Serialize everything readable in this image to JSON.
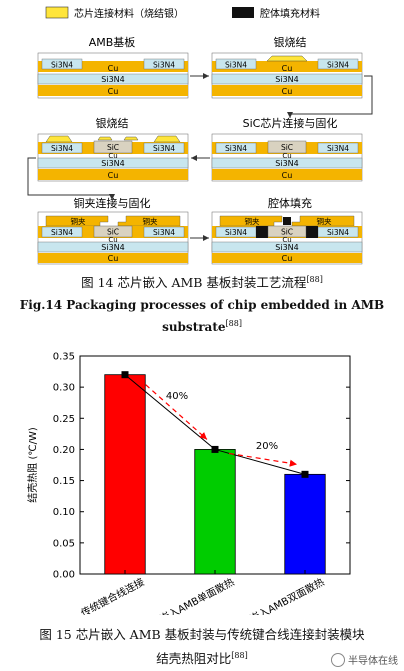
{
  "legend": {
    "filler_material": "芯片连接材料（烧结银）",
    "cavity_material": "腔体填充材料"
  },
  "process_steps": [
    {
      "title": "AMB基板",
      "labels": [
        "Si3N4",
        "Si3N4",
        "Cu",
        "Si3N4",
        "Cu"
      ]
    },
    {
      "title": "银烧结",
      "labels": [
        "Si3N4",
        "Si3N4",
        "Cu",
        "Si3N4",
        "Cu"
      ]
    },
    {
      "title": "SiC芯片连接与固化",
      "labels": [
        "Si3N4",
        "SiC",
        "Si3N4",
        "Cu",
        "Si3N4",
        "Cu"
      ]
    },
    {
      "title": "银烧结",
      "labels": [
        "Si3N4",
        "SiC",
        "Si3N4",
        "Cu",
        "Si3N4",
        "Cu"
      ]
    },
    {
      "title": "铜夹连接与固化",
      "labels": [
        "铜夹",
        "铜夹",
        "Si3N4",
        "SiC",
        "Si3N4",
        "Cu",
        "Si3N4",
        "Cu"
      ]
    },
    {
      "title": "腔体填充",
      "labels": [
        "铜夹",
        "铜夹",
        "Si3N4",
        "SiC",
        "Si3N4",
        "Cu",
        "Si3N4",
        "Cu"
      ]
    }
  ],
  "fig14": {
    "caption_cn": "图 14  芯片嵌入 AMB 基板封装工艺流程",
    "caption_cn_ref": "[88]",
    "caption_en_1": "Fig.14 Packaging processes of chip embedded in AMB",
    "caption_en_2": "substrate",
    "caption_en_ref": "[88]"
  },
  "fig15": {
    "caption_line1": "图 15  芯片嵌入 AMB 基板封装与传统键合线连接封装模块",
    "caption_line2": "结壳热阻对比",
    "caption_ref": "[88]"
  },
  "chart_data": {
    "type": "bar",
    "categories": [
      "传统键合线连接",
      "芯片嵌入AMB单面散热",
      "芯片嵌入AMB双面散热"
    ],
    "values": [
      0.32,
      0.2,
      0.16
    ],
    "colors": [
      "#ff0000",
      "#00cc00",
      "#0000ff"
    ],
    "ylabel": "结壳热阻 (℃/W)",
    "ylim": [
      0,
      0.35
    ],
    "yticks": [
      "0.00",
      "0.05",
      "0.10",
      "0.15",
      "0.20",
      "0.25",
      "0.30",
      "0.35"
    ],
    "annotations": [
      "40%",
      "20%"
    ],
    "line_overlay": true
  },
  "watermark": "半导体在线"
}
